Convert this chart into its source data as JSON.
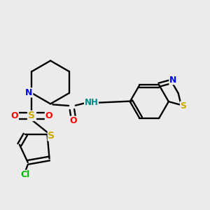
{
  "background_color": "#ebebeb",
  "figsize": [
    3.0,
    3.0
  ],
  "dpi": 100,
  "colors": {
    "bond": "#000000",
    "N": "#0000ff",
    "S": "#ccaa00",
    "O": "#ff0000",
    "Cl": "#00bb00",
    "NH": "#008888",
    "C": "#000000"
  }
}
